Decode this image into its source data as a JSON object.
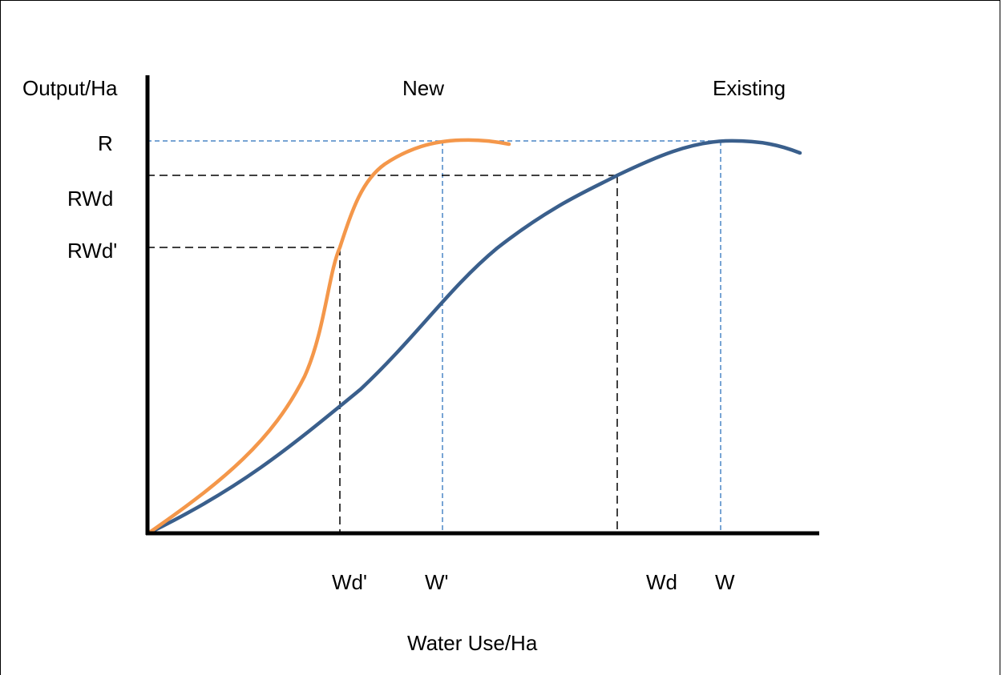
{
  "chart_data": {
    "type": "line",
    "xlabel": "Water Use/Ha",
    "ylabel": "Output/Ha",
    "x_ticks": [
      "Wd'",
      "W'",
      "Wd",
      "W"
    ],
    "y_ticks": [
      "R",
      "RWd",
      "RWd'"
    ],
    "series": [
      {
        "name": "New",
        "color": "#f4974a"
      },
      {
        "name": "Existing",
        "color": "#3a5f8c"
      }
    ],
    "grid": false,
    "colors": {
      "axis": "#000000",
      "black_guides": "#000000",
      "blue_guides": "#4a86c5"
    }
  }
}
